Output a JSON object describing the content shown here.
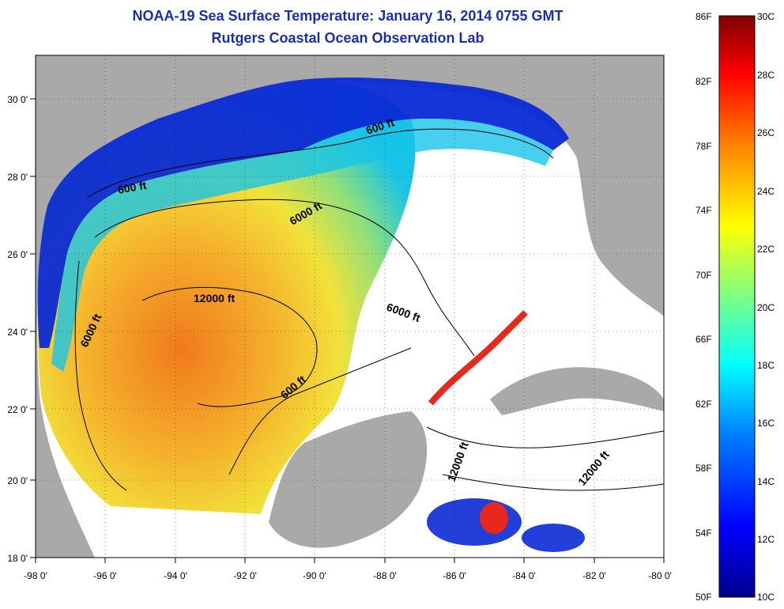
{
  "header": {
    "title_line1": "NOAA-19 Sea Surface Temperature:  January 16, 2014 0755 GMT",
    "title_line2": "Rutgers Coastal Ocean Observation Lab"
  },
  "map": {
    "lon_range": [
      -98,
      -80
    ],
    "lat_range": [
      18,
      31
    ],
    "lon_ticks": [
      "-98 0'",
      "-96 0'",
      "-94 0'",
      "-92 0'",
      "-90 0'",
      "-88 0'",
      "-86 0'",
      "-84 0'",
      "-82 0'",
      "-80 0'"
    ],
    "lat_ticks": [
      "18 0'",
      "20 0'",
      "22 0'",
      "24 0'",
      "26 0'",
      "28 0'",
      "30 0'"
    ],
    "contour_labels": [
      "600 ft",
      "600 ft",
      "6000 ft",
      "12000 ft",
      "6000 ft",
      "6000 ft",
      "600 ft",
      "12000 ft",
      "12000 ft"
    ],
    "colors": {
      "land": "#a9a9a9",
      "cloud": "#ffffff",
      "cold": "#0a2ad6",
      "cool": "#18c4e8",
      "mild": "#8fe07a",
      "warm": "#f2e23a",
      "warmer": "#f5b02c",
      "hot": "#f07a1c",
      "hottest": "#e8281c",
      "deep_red": "#b00000"
    }
  },
  "colorbar": {
    "f_labels": [
      "86F",
      "82F",
      "78F",
      "74F",
      "70F",
      "66F",
      "62F",
      "58F",
      "54F",
      "50F"
    ],
    "c_labels": [
      "30C",
      "28C",
      "26C",
      "24C",
      "22C",
      "20C",
      "18C",
      "16C",
      "14C",
      "12C",
      "10C"
    ],
    "colors": [
      "#00008b",
      "#0000ff",
      "#0080ff",
      "#00ffff",
      "#80ff80",
      "#ffff00",
      "#ff8000",
      "#ff0000",
      "#800000"
    ]
  }
}
